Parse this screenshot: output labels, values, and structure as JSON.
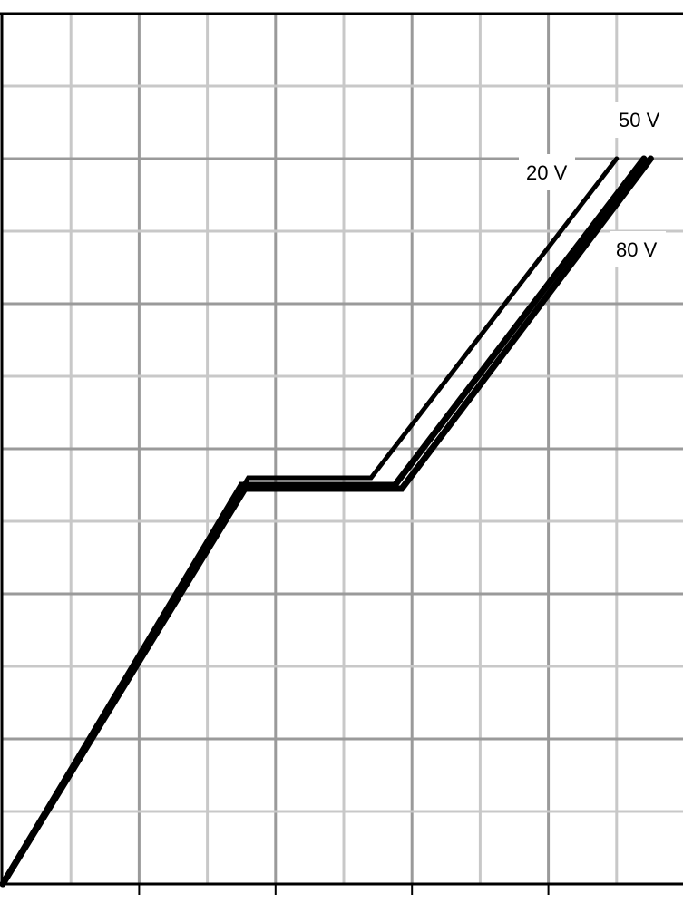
{
  "chart_data": {
    "type": "line",
    "title": "",
    "xlabel": "",
    "ylabel": "",
    "xlim": [
      0,
      10
    ],
    "ylim": [
      0,
      12
    ],
    "grid": true,
    "legend": "none",
    "x_major_step": 2,
    "x_minor_step": 1,
    "y_major_step": 2,
    "y_minor_step": 1,
    "series": [
      {
        "name": "20 V",
        "points": [
          [
            0,
            0
          ],
          [
            3.6,
            5.6
          ],
          [
            5.4,
            5.6
          ],
          [
            9.0,
            10.0
          ]
        ]
      },
      {
        "name": "50 V",
        "points": [
          [
            0,
            0
          ],
          [
            3.5,
            5.5
          ],
          [
            5.75,
            5.5
          ],
          [
            9.4,
            10.0
          ]
        ]
      },
      {
        "name": "80 V",
        "points": [
          [
            0,
            0
          ],
          [
            3.55,
            5.45
          ],
          [
            5.85,
            5.45
          ],
          [
            9.5,
            10.0
          ]
        ]
      }
    ]
  }
}
